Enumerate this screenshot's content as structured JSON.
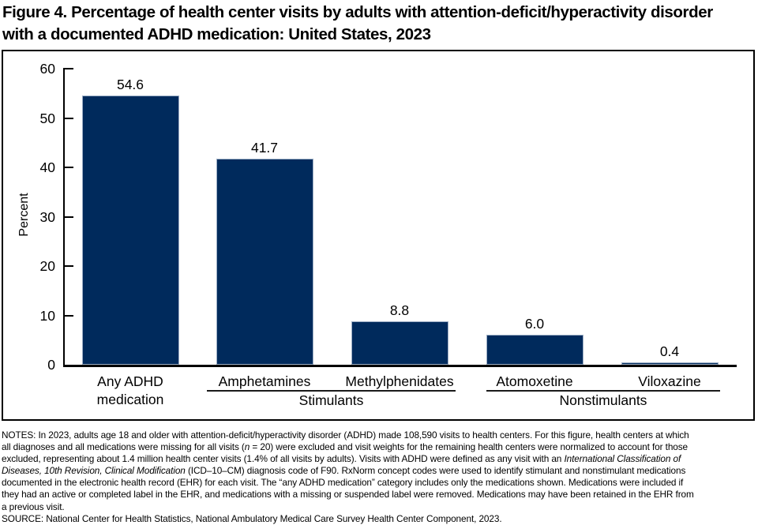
{
  "figure": {
    "title_lines": [
      "Figure 4. Percentage of health center visits by adults with attention-deficit/hyperactivity disorder",
      "with a documented ADHD medication: United States, 2023"
    ]
  },
  "chart_data": {
    "type": "bar",
    "title": "Figure 4. Percentage of health center visits by adults with attention-deficit/hyperactivity disorder with a documented ADHD medication: United States, 2023",
    "xlabel": "",
    "ylabel": "Percent",
    "ylim": [
      0,
      60
    ],
    "yticks": [
      0,
      10,
      20,
      30,
      40,
      50,
      60
    ],
    "grid": false,
    "legend_position": "none",
    "bar_color": "#002a5c",
    "bar_border_color": "#9cadc4",
    "categories": [
      "Any ADHD medication",
      "Amphetamines",
      "Methylphenidates",
      "Atomoxetine",
      "Viloxazine"
    ],
    "values": [
      54.6,
      41.7,
      8.8,
      6.0,
      0.4
    ],
    "value_labels": [
      "54.6",
      "41.7",
      "8.8",
      "6.0",
      "0.4"
    ],
    "groups": [
      {
        "label": "Stimulants",
        "members": [
          "Amphetamines",
          "Methylphenidates"
        ]
      },
      {
        "label": "Nonstimulants",
        "members": [
          "Atomoxetine",
          "Viloxazine"
        ]
      }
    ]
  },
  "notes": {
    "lines": [
      [
        {
          "t": "NOTES: In 2023, adults age 18 and older with attention-deficit/hyperactivity disorder (ADHD) made 108,590 visits to health centers. For this figure, health centers at which"
        }
      ],
      [
        {
          "t": "all diagnoses and all medications were missing for all visits ("
        },
        {
          "t": "n",
          "i": true
        },
        {
          "t": " = 20) were excluded and visit weights for the remaining health centers were normalized to account for those"
        }
      ],
      [
        {
          "t": "excluded, representing about 1.4 million health center visits (1.4% of all visits by adults). Visits with ADHD were defined as any visit with an "
        },
        {
          "t": "International Classification of",
          "i": true
        }
      ],
      [
        {
          "t": "Diseases, 10th Revision, Clinical Modification",
          "i": true
        },
        {
          "t": " (ICD–10–CM) diagnosis code of F90. RxNorm concept codes were used to identify stimulant and nonstimulant medications"
        }
      ],
      [
        {
          "t": "documented in the electronic health record (EHR) for each visit. The “any ADHD medication” category includes only the medications shown. Medications were included if"
        }
      ],
      [
        {
          "t": "they had an active or completed label in the EHR, and medications with a missing or suspended label were removed. Medications may have been retained in the EHR from"
        }
      ],
      [
        {
          "t": "a previous visit."
        }
      ],
      [
        {
          "t": "SOURCE: National Center for Health Statistics, National Ambulatory Medical Care Survey Health Center Component, 2023."
        }
      ]
    ]
  }
}
